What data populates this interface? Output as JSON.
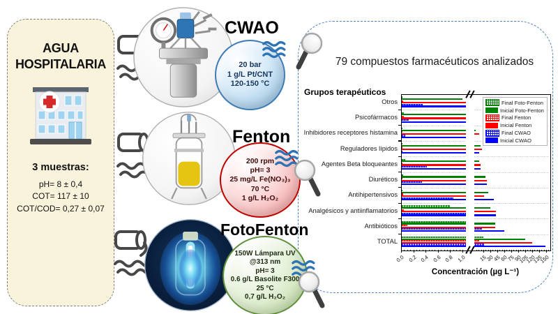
{
  "left_panel": {
    "title_line1": "AGUA",
    "title_line2": "HOSPITALARIA",
    "samples_label": "3 muestras:",
    "sample_lines": [
      "pH= 8 ± 0,4",
      "COT= 117 ± 10",
      "COT/COD= 0,27 ± 0,07"
    ]
  },
  "processes": [
    {
      "name": "CWAO",
      "conditions": [
        "20 bar",
        "1 g/L Pt/CNT",
        "120-150 °C"
      ],
      "bubble_fill": "#d6eaf8",
      "bubble_fill2": "#8bbbe0",
      "bubble_border": "#3e7cb8",
      "text_color": "#17375e"
    },
    {
      "name": "Fenton",
      "conditions": [
        "200 rpm",
        "pH= 3",
        "25 mg/L Fe(NO₃)₃",
        "70 °C",
        "1 g/L H₂O₂"
      ],
      "bubble_fill": "#fbdada",
      "bubble_fill2": "#f09696",
      "bubble_border": "#c00000",
      "text_color": "#400b0b"
    },
    {
      "name": "FotoFenton",
      "conditions": [
        "150W Lámpara UV",
        "@313 nm",
        "pH= 3",
        "0.6 g/L Basolite F300",
        "25 °C",
        "0,7 g/L H₂O₂"
      ],
      "bubble_fill": "#e7f2dc",
      "bubble_fill2": "#b8d79a",
      "bubble_border": "#5e8f3a",
      "text_color": "#1c2b12"
    }
  ],
  "right_panel": {
    "title": "79 compuestos farmacéuticos analizados"
  },
  "icons": {
    "faucet": "pipe-pouring-water-icon",
    "waves": "water-flow-icon",
    "magnifier": "magnifying-glass-icon",
    "hospital": "hospital-building-icon"
  },
  "chart_data": {
    "type": "bar",
    "orientation": "horizontal",
    "title": "Grupos terapéuticos",
    "xlabel": "Concentración (µg L⁻¹)",
    "grid": "dotted horizontal group separators",
    "legend_position": "upper right inside plot",
    "axis_break": {
      "left_range": [
        0.0,
        1.0
      ],
      "right_range": [
        15,
        150
      ]
    },
    "left_ticks": [
      "0.0",
      "0.2",
      "0.4",
      "0.6",
      "0.8",
      "1.0"
    ],
    "right_ticks": [
      "15",
      "30",
      "45",
      "60",
      "75",
      "90",
      "105",
      "120",
      "135",
      "150"
    ],
    "categories": [
      "Otros",
      "Psicofármacos",
      "Inhibidores receptores histamina",
      "Reguladores lípidos",
      "Agentes Beta bloqueantes",
      "Diuréticos",
      "Antihipertensivos",
      "Analgésicos y antiinflamatorios",
      "Antibióticos",
      "TOTAL"
    ],
    "series": [
      {
        "name": "Final Foto-Fenton",
        "color": "#008000",
        "pattern": "hatch",
        "values": [
          0.02,
          0.05,
          0.01,
          0.01,
          0.07,
          0.03,
          0.02,
          0.8,
          5,
          15
        ]
      },
      {
        "name": "Inicial Foto-Fenton",
        "color": "#008000",
        "pattern": "solid",
        "values": [
          1.0,
          8,
          10,
          13,
          12,
          20,
          25,
          30,
          40,
          105
        ]
      },
      {
        "name": "Final Fenton",
        "color": "#ff0000",
        "pattern": "hatch",
        "values": [
          0.03,
          0.04,
          0.01,
          0.01,
          0.02,
          0.02,
          0.03,
          0.05,
          0.1,
          12
        ]
      },
      {
        "name": "Inicial Fenton",
        "color": "#ff0000",
        "pattern": "solid",
        "values": [
          8,
          9,
          12,
          14,
          13,
          22,
          17,
          42,
          40,
          120
        ]
      },
      {
        "name": "Final CWAO",
        "color": "#0000ff",
        "pattern": "hatch",
        "values": [
          0.35,
          0.13,
          0.07,
          0.02,
          0.42,
          0.34,
          0.85,
          9,
          14,
          17
        ]
      },
      {
        "name": "Inicial CWAO",
        "color": "#0000ff",
        "pattern": "solid",
        "values": [
          9,
          8,
          9,
          12,
          13,
          22,
          37,
          42,
          60,
          148
        ]
      }
    ]
  }
}
